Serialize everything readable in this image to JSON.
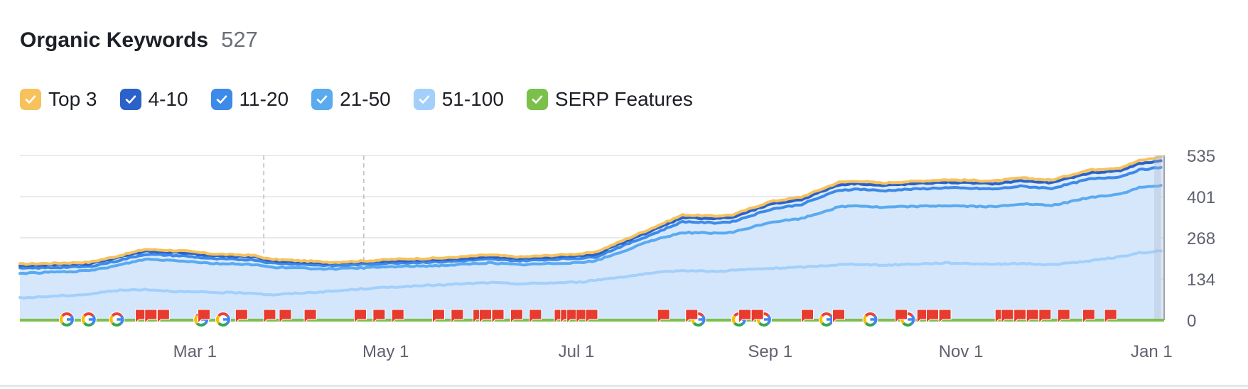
{
  "widget": {
    "title": "Organic Keywords",
    "count": "527"
  },
  "legend": [
    {
      "label": "Top 3",
      "color": "#f7c25c"
    },
    {
      "label": "4-10",
      "color": "#2a62c9"
    },
    {
      "label": "11-20",
      "color": "#3d8ae8"
    },
    {
      "label": "21-50",
      "color": "#5aaaf0"
    },
    {
      "label": "51-100",
      "color": "#a3d0fb"
    },
    {
      "label": "SERP Features",
      "color": "#7bc04b"
    }
  ],
  "chart_data": {
    "type": "area",
    "x_tick_labels": [
      "Mar 1",
      "May 1",
      "Jul 1",
      "Sep 1",
      "Nov 1",
      "Jan 1"
    ],
    "y_tick_labels": [
      "0",
      "134",
      "268",
      "401",
      "535"
    ],
    "ylim": [
      0,
      535
    ],
    "grid": true,
    "x_range": [
      "Jan 4",
      "Jan 8"
    ],
    "x_day_range": [
      0,
      366
    ],
    "series": [
      {
        "name": "Top 3",
        "color": "#f7c25c",
        "x": [
          0,
          22,
          30,
          40,
          52,
          62,
          75,
          80,
          100,
          110,
          120,
          136,
          150,
          160,
          180,
          184,
          192,
          202,
          212,
          222,
          228,
          240,
          250,
          262,
          268,
          276,
          280,
          296,
          312,
          320,
          330,
          342,
          352,
          358,
          365
        ],
        "values": [
          182,
          188,
          205,
          230,
          225,
          215,
          210,
          198,
          188,
          192,
          198,
          202,
          212,
          205,
          216,
          220,
          255,
          298,
          342,
          338,
          342,
          385,
          400,
          448,
          452,
          445,
          448,
          456,
          452,
          462,
          455,
          488,
          495,
          518,
          530
        ]
      },
      {
        "name": "4-10",
        "color": "#2a62c9",
        "x": [
          0,
          22,
          30,
          40,
          52,
          62,
          75,
          80,
          100,
          110,
          120,
          136,
          150,
          160,
          180,
          184,
          192,
          202,
          212,
          222,
          228,
          240,
          250,
          262,
          268,
          276,
          280,
          296,
          312,
          320,
          330,
          342,
          352,
          358,
          365
        ],
        "values": [
          177,
          183,
          200,
          224,
          219,
          209,
          205,
          193,
          184,
          188,
          193,
          197,
          206,
          200,
          210,
          213,
          248,
          290,
          334,
          330,
          334,
          376,
          392,
          440,
          444,
          437,
          440,
          448,
          443,
          453,
          446,
          478,
          486,
          508,
          518
        ]
      },
      {
        "name": "11-20",
        "color": "#3d8ae8",
        "x": [
          0,
          22,
          30,
          40,
          52,
          62,
          75,
          80,
          100,
          110,
          120,
          136,
          150,
          160,
          180,
          184,
          192,
          202,
          212,
          222,
          228,
          240,
          250,
          262,
          268,
          276,
          280,
          296,
          312,
          320,
          330,
          342,
          352,
          358,
          365
        ],
        "values": [
          168,
          174,
          190,
          214,
          209,
          199,
          196,
          186,
          177,
          181,
          186,
          190,
          198,
          193,
          202,
          205,
          238,
          278,
          320,
          316,
          320,
          360,
          376,
          422,
          426,
          420,
          423,
          430,
          426,
          435,
          428,
          458,
          466,
          488,
          496
        ]
      },
      {
        "name": "21-50",
        "color": "#5aaaf0",
        "x": [
          0,
          22,
          30,
          40,
          52,
          62,
          75,
          80,
          100,
          110,
          120,
          136,
          150,
          160,
          180,
          184,
          192,
          202,
          212,
          222,
          228,
          240,
          250,
          262,
          268,
          276,
          280,
          296,
          312,
          320,
          330,
          342,
          352,
          358,
          365
        ],
        "values": [
          152,
          160,
          175,
          198,
          193,
          184,
          181,
          172,
          166,
          170,
          174,
          178,
          186,
          180,
          188,
          192,
          220,
          258,
          285,
          282,
          285,
          318,
          330,
          368,
          372,
          366,
          368,
          372,
          368,
          378,
          372,
          398,
          410,
          430,
          438
        ]
      },
      {
        "name": "51-100",
        "color": "#a3d0fb",
        "x": [
          0,
          22,
          30,
          40,
          52,
          62,
          75,
          80,
          100,
          110,
          120,
          136,
          150,
          160,
          180,
          184,
          192,
          202,
          212,
          222,
          228,
          240,
          250,
          262,
          268,
          276,
          280,
          296,
          312,
          320,
          330,
          342,
          352,
          358,
          365
        ],
        "values": [
          72,
          84,
          96,
          100,
          92,
          90,
          88,
          82,
          94,
          102,
          108,
          115,
          122,
          118,
          124,
          130,
          140,
          152,
          162,
          158,
          162,
          168,
          172,
          180,
          182,
          178,
          180,
          186,
          182,
          184,
          180,
          192,
          206,
          218,
          225
        ]
      }
    ],
    "serp_markers": {
      "google": [
        15,
        22,
        31,
        58,
        65,
        217,
        230,
        238,
        258,
        272,
        284
      ],
      "flag": [
        39,
        42,
        46,
        59,
        71,
        80,
        85,
        93,
        109,
        115,
        121,
        134,
        140,
        147,
        149,
        153,
        159,
        165,
        173,
        175,
        177,
        180,
        183,
        206,
        215,
        232,
        236,
        252,
        262,
        282,
        289,
        292,
        296,
        314,
        316,
        320,
        324,
        328,
        334,
        342,
        349
      ]
    },
    "vertical_markers_days": [
      78,
      110
    ]
  }
}
